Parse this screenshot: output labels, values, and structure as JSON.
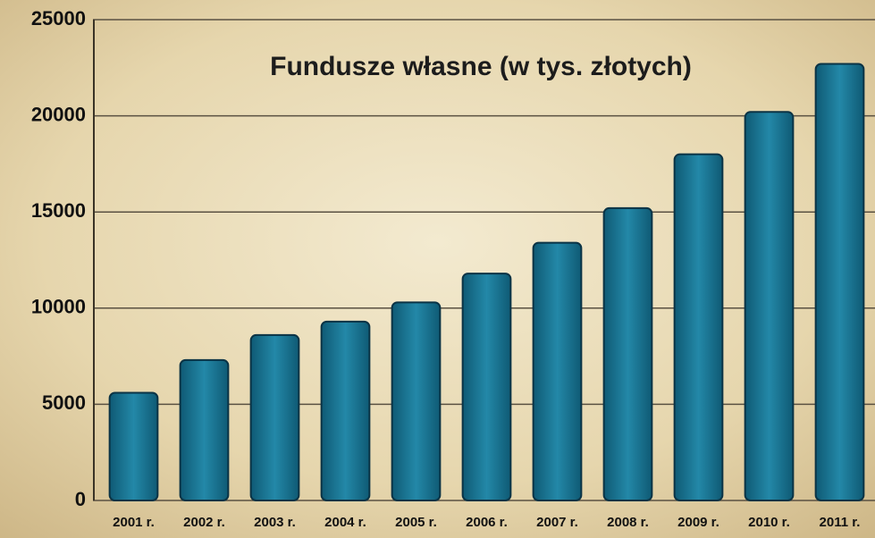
{
  "chart_data": {
    "type": "bar",
    "title": "Fundusze własne (w tys. złotych)",
    "categories": [
      "2001 r.",
      "2002 r.",
      "2003 r.",
      "2004 r.",
      "2005 r.",
      "2006 r.",
      "2007 r.",
      "2008 r.",
      "2009 r.",
      "2010 r.",
      "2011 r."
    ],
    "values": [
      5600,
      7300,
      8600,
      9300,
      10300,
      11800,
      13400,
      15200,
      18000,
      20200,
      22700
    ],
    "color": "#1b7896",
    "ylim": [
      0,
      25000
    ],
    "yticks": [
      0,
      5000,
      10000,
      15000,
      20000,
      25000
    ],
    "grid": true
  }
}
